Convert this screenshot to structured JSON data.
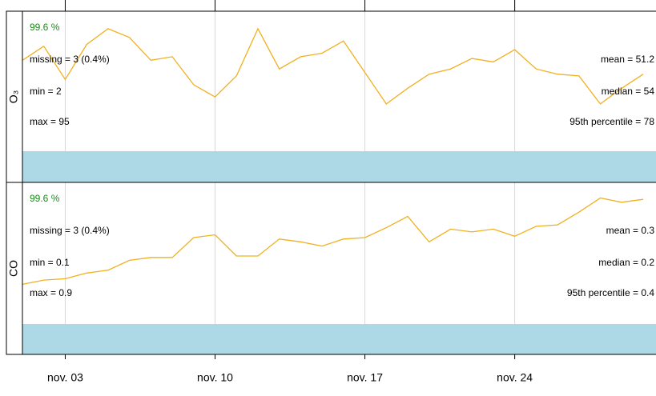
{
  "chart_data": [
    {
      "type": "line",
      "ylabel": "O₃",
      "color": "#f0b020",
      "band_color": "#add8e6",
      "grid": true,
      "x": [
        1,
        2,
        3,
        4,
        5,
        6,
        7,
        8,
        9,
        10,
        11,
        12,
        13,
        14,
        15,
        16,
        17,
        18,
        19,
        20,
        21,
        22,
        23,
        24,
        25,
        26,
        27,
        28,
        29,
        30
      ],
      "values": [
        52,
        60,
        41,
        61,
        70,
        65,
        52,
        54,
        38,
        31,
        43,
        70,
        47,
        54,
        56,
        63,
        45,
        27,
        36,
        44,
        47,
        53,
        51,
        58,
        47,
        44,
        43,
        27,
        36,
        44
      ],
      "xlim": [
        1,
        30.6
      ],
      "ylim": [
        0,
        80
      ],
      "xticks": [
        {
          "value": 3,
          "label": "nov. 03"
        },
        {
          "value": 10,
          "label": "nov. 10"
        },
        {
          "value": 17,
          "label": "nov. 17"
        },
        {
          "value": 24,
          "label": "nov. 24"
        }
      ],
      "annotations": {
        "percent": "99.6 %",
        "missing": "missing = 3 (0.4%)",
        "min": "min = 2",
        "max": "max = 95",
        "mean": "mean = 51.2",
        "median": "median = 54",
        "p95": "95th percentile = 78"
      }
    },
    {
      "type": "line",
      "ylabel": "CO",
      "color": "#f0b020",
      "band_color": "#add8e6",
      "grid": true,
      "x": [
        1,
        2,
        3,
        4,
        5,
        6,
        7,
        8,
        9,
        10,
        11,
        12,
        13,
        14,
        15,
        16,
        17,
        18,
        19,
        20,
        21,
        22,
        23,
        24,
        25,
        26,
        27,
        28,
        29,
        30
      ],
      "values": [
        0.28,
        0.31,
        0.32,
        0.36,
        0.38,
        0.45,
        0.47,
        0.47,
        0.61,
        0.63,
        0.48,
        0.48,
        0.6,
        0.58,
        0.55,
        0.6,
        0.61,
        0.68,
        0.76,
        0.58,
        0.67,
        0.65,
        0.67,
        0.62,
        0.69,
        0.7,
        0.79,
        0.89,
        0.86,
        0.88
      ],
      "xlim": [
        1,
        30.6
      ],
      "ylim": [
        0,
        1
      ],
      "xticks": [
        {
          "value": 3,
          "label": "nov. 03"
        },
        {
          "value": 10,
          "label": "nov. 10"
        },
        {
          "value": 17,
          "label": "nov. 17"
        },
        {
          "value": 24,
          "label": "nov. 24"
        }
      ],
      "annotations": {
        "percent": "99.6 %",
        "missing": "missing = 3 (0.4%)",
        "min": "min = 0.1",
        "max": "max = 0.9",
        "mean": "mean = 0.3",
        "median": "median = 0.2",
        "p95": "95th percentile = 0.4"
      }
    }
  ]
}
